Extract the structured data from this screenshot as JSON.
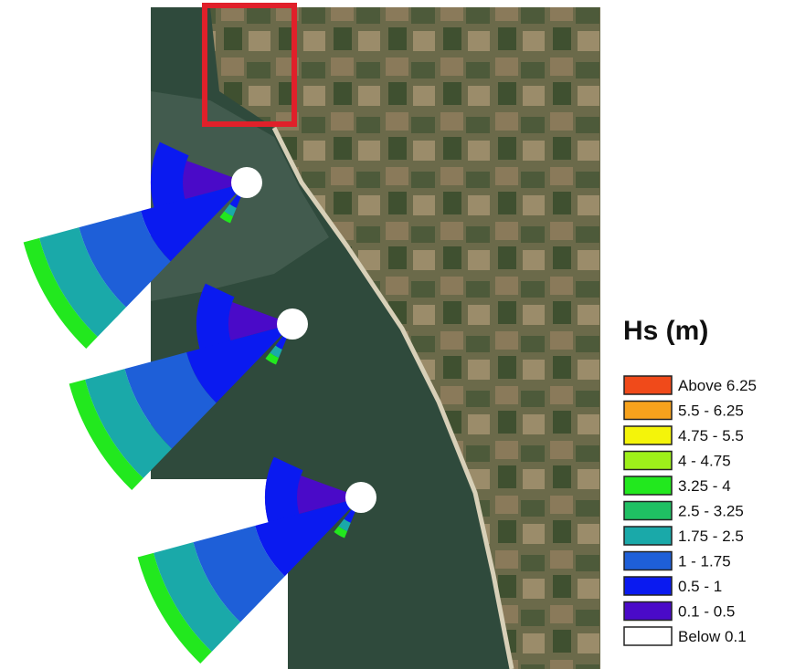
{
  "legend": {
    "title": "Hs (m)",
    "items": [
      {
        "label": "Above 6.25",
        "color": "#f04a1a"
      },
      {
        "label": "5.5 - 6.25",
        "color": "#f7a21c"
      },
      {
        "label": "4.75 - 5.5",
        "color": "#f4f40a"
      },
      {
        "label": "4 - 4.75",
        "color": "#9ef01a"
      },
      {
        "label": "3.25 - 4",
        "color": "#22e81e"
      },
      {
        "label": "2.5 - 3.25",
        "color": "#1fc063"
      },
      {
        "label": "1.75 - 2.5",
        "color": "#1aa9a9"
      },
      {
        "label": "1 - 1.75",
        "color": "#1e5fd8"
      },
      {
        "label": "0.5 - 1",
        "color": "#0a1af0"
      },
      {
        "label": "0.1 - 0.5",
        "color": "#4a0ac8"
      },
      {
        "label": "Below 0.1",
        "color": "#ffffff"
      }
    ]
  }
}
